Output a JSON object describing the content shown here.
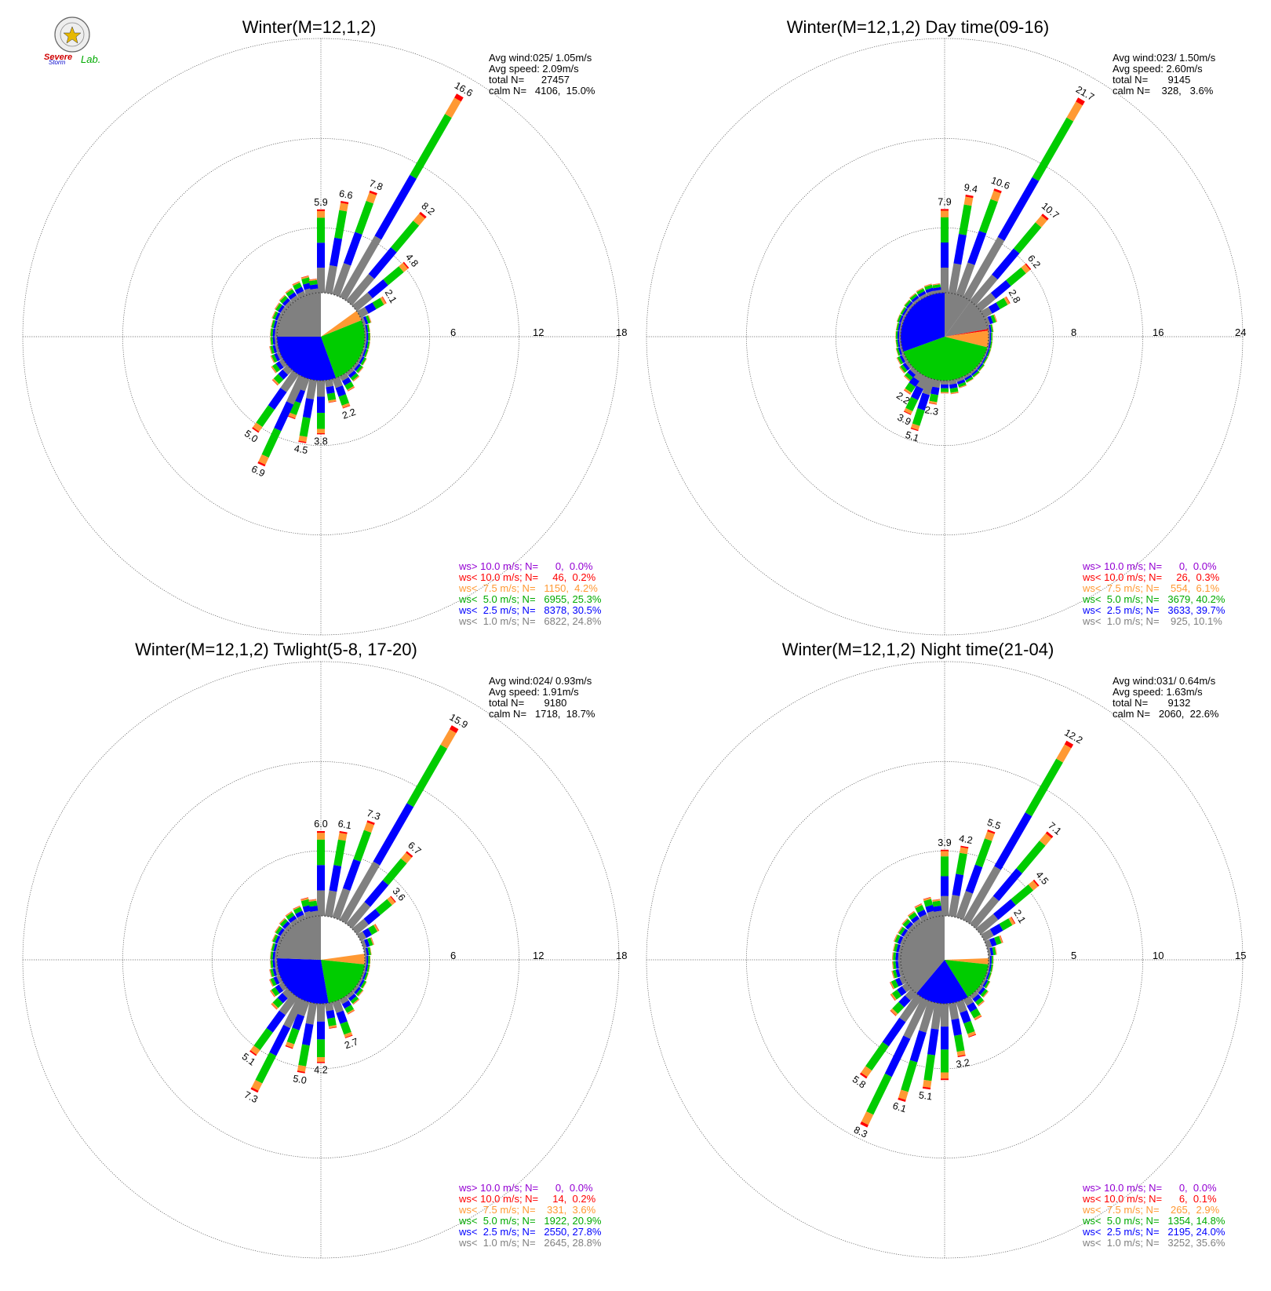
{
  "logo": {
    "text1": "Severe",
    "text2": "Storm",
    "text3": "Lab."
  },
  "colors": {
    "ws_gt_10": "#9400d3",
    "ws_lt_10": "#ff0000",
    "ws_lt_7_5": "#ff9933",
    "ws_lt_5": "#00cc00",
    "ws_lt_2_5": "#0000ff",
    "ws_lt_1": "#808080",
    "calm": "#ffffff"
  },
  "chart_data": [
    {
      "type": "polar-bar",
      "title": "Winter(M=12,1,2)",
      "rings": [
        "6",
        "12",
        "18"
      ],
      "rmax": 18,
      "stats": [
        "Avg wind:025/ 1.05m/s",
        "Avg speed: 2.09m/s",
        "total N=      27457",
        "calm N=   4106,  15.0%"
      ],
      "legend": [
        "ws> 10.0 m/s; N=      0,  0.0%",
        "ws< 10.0 m/s; N=     46,  0.2%",
        "ws<  7.5 m/s; N=   1150,  4.2%",
        "ws<  5.0 m/s; N=   6955, 25.3%",
        "ws<  2.5 m/s; N=   8378, 30.5%",
        "ws<  1.0 m/s; N=   6822, 24.8%"
      ],
      "bars": [
        {
          "dir": 0,
          "total": 5.9,
          "label": "5.9"
        },
        {
          "dir": 10,
          "total": 6.6,
          "label": "6.6"
        },
        {
          "dir": 20,
          "total": 7.8,
          "label": "7.8"
        },
        {
          "dir": 30,
          "total": 16.6,
          "label": "16.6"
        },
        {
          "dir": 40,
          "total": 8.2,
          "label": "8.2"
        },
        {
          "dir": 50,
          "total": 4.8,
          "label": "4.8"
        },
        {
          "dir": 60,
          "total": 2.1,
          "label": "2.1"
        },
        {
          "dir": 70,
          "total": 0.6,
          "label": ""
        },
        {
          "dir": 80,
          "total": 0.4,
          "label": ""
        },
        {
          "dir": 90,
          "total": 0.4,
          "label": ""
        },
        {
          "dir": 100,
          "total": 0.4,
          "label": ""
        },
        {
          "dir": 110,
          "total": 0.4,
          "label": ""
        },
        {
          "dir": 120,
          "total": 0.5,
          "label": ""
        },
        {
          "dir": 130,
          "total": 0.6,
          "label": ""
        },
        {
          "dir": 140,
          "total": 0.8,
          "label": ""
        },
        {
          "dir": 150,
          "total": 1.2,
          "label": ""
        },
        {
          "dir": 160,
          "total": 2.2,
          "label": "2.2"
        },
        {
          "dir": 170,
          "total": 1.6,
          "label": ""
        },
        {
          "dir": 180,
          "total": 3.8,
          "label": "3.8"
        },
        {
          "dir": 190,
          "total": 4.5,
          "label": "4.5"
        },
        {
          "dir": 200,
          "total": 3.0,
          "label": ""
        },
        {
          "dir": 205,
          "total": 6.9,
          "label": "6.9"
        },
        {
          "dir": 215,
          "total": 5.0,
          "label": "5.0"
        },
        {
          "dir": 225,
          "total": 1.5,
          "label": ""
        },
        {
          "dir": 235,
          "total": 1.0,
          "label": ""
        },
        {
          "dir": 245,
          "total": 0.7,
          "label": ""
        },
        {
          "dir": 255,
          "total": 0.6,
          "label": ""
        },
        {
          "dir": 265,
          "total": 0.5,
          "label": ""
        },
        {
          "dir": 275,
          "total": 0.5,
          "label": ""
        },
        {
          "dir": 285,
          "total": 0.5,
          "label": ""
        },
        {
          "dir": 295,
          "total": 0.6,
          "label": ""
        },
        {
          "dir": 305,
          "total": 0.7,
          "label": ""
        },
        {
          "dir": 315,
          "total": 0.8,
          "label": ""
        },
        {
          "dir": 325,
          "total": 0.9,
          "label": ""
        },
        {
          "dir": 335,
          "total": 1.1,
          "label": ""
        },
        {
          "dir": 345,
          "total": 1.3,
          "label": ""
        },
        {
          "dir": 352,
          "total": 1.0,
          "label": ""
        }
      ],
      "pie": [
        {
          "cls": "calm",
          "start": 0,
          "end": 54
        },
        {
          "cls": "ws_lt_7_5",
          "start": 54,
          "end": 68
        },
        {
          "cls": "ws_lt_5",
          "start": 68,
          "end": 160
        },
        {
          "cls": "ws_lt_2_5",
          "start": 160,
          "end": 270
        },
        {
          "cls": "ws_lt_1",
          "start": 270,
          "end": 360
        }
      ]
    },
    {
      "type": "polar-bar",
      "title": "Winter(M=12,1,2) Day time(09-16)",
      "rings": [
        "8",
        "16",
        "24"
      ],
      "rmax": 24,
      "stats": [
        "Avg wind:023/ 1.50m/s",
        "Avg speed: 2.60m/s",
        "total N=       9145",
        "calm N=    328,   3.6%"
      ],
      "legend": [
        "ws> 10.0 m/s; N=      0,  0.0%",
        "ws< 10.0 m/s; N=     26,  0.3%",
        "ws<  7.5 m/s; N=    554,  6.1%",
        "ws<  5.0 m/s; N=   3679, 40.2%",
        "ws<  2.5 m/s; N=   3633, 39.7%",
        "ws<  1.0 m/s; N=    925, 10.1%"
      ],
      "bars": [
        {
          "dir": 0,
          "total": 7.9,
          "label": "7.9"
        },
        {
          "dir": 10,
          "total": 9.4,
          "label": "9.4"
        },
        {
          "dir": 20,
          "total": 10.6,
          "label": "10.6"
        },
        {
          "dir": 30,
          "total": 21.7,
          "label": "21.7"
        },
        {
          "dir": 40,
          "total": 10.7,
          "label": "10.7"
        },
        {
          "dir": 50,
          "total": 6.2,
          "label": "6.2"
        },
        {
          "dir": 60,
          "total": 2.8,
          "label": "2.8"
        },
        {
          "dir": 70,
          "total": 1.0,
          "label": ""
        },
        {
          "dir": 80,
          "total": 0.5,
          "label": ""
        },
        {
          "dir": 90,
          "total": 0.4,
          "label": ""
        },
        {
          "dir": 100,
          "total": 0.4,
          "label": ""
        },
        {
          "dir": 110,
          "total": 0.4,
          "label": ""
        },
        {
          "dir": 120,
          "total": 0.4,
          "label": ""
        },
        {
          "dir": 130,
          "total": 0.5,
          "label": ""
        },
        {
          "dir": 140,
          "total": 0.6,
          "label": ""
        },
        {
          "dir": 150,
          "total": 0.7,
          "label": ""
        },
        {
          "dir": 160,
          "total": 0.9,
          "label": ""
        },
        {
          "dir": 170,
          "total": 1.3,
          "label": ""
        },
        {
          "dir": 180,
          "total": 1.2,
          "label": ""
        },
        {
          "dir": 190,
          "total": 2.3,
          "label": "2.3"
        },
        {
          "dir": 198,
          "total": 5.1,
          "label": "5.1"
        },
        {
          "dir": 206,
          "total": 3.9,
          "label": "3.9"
        },
        {
          "dir": 214,
          "total": 2.2,
          "label": "2.2"
        },
        {
          "dir": 222,
          "total": 1.2,
          "label": ""
        },
        {
          "dir": 232,
          "total": 1.0,
          "label": ""
        },
        {
          "dir": 242,
          "total": 0.8,
          "label": ""
        },
        {
          "dir": 252,
          "total": 0.6,
          "label": ""
        },
        {
          "dir": 262,
          "total": 0.5,
          "label": ""
        },
        {
          "dir": 272,
          "total": 0.5,
          "label": ""
        },
        {
          "dir": 282,
          "total": 0.5,
          "label": ""
        },
        {
          "dir": 292,
          "total": 0.6,
          "label": ""
        },
        {
          "dir": 302,
          "total": 0.6,
          "label": ""
        },
        {
          "dir": 312,
          "total": 0.7,
          "label": ""
        },
        {
          "dir": 322,
          "total": 0.8,
          "label": ""
        },
        {
          "dir": 332,
          "total": 0.9,
          "label": ""
        },
        {
          "dir": 342,
          "total": 1.0,
          "label": ""
        },
        {
          "dir": 351,
          "total": 0.9,
          "label": ""
        }
      ],
      "pie": [
        {
          "cls": "ws_lt_1",
          "start": 0,
          "end": 36
        },
        {
          "cls": "ws_lt_1",
          "start": 36,
          "end": 80
        },
        {
          "cls": "ws_lt_10",
          "start": 80,
          "end": 82
        },
        {
          "cls": "ws_lt_7_5",
          "start": 82,
          "end": 104
        },
        {
          "cls": "ws_lt_5",
          "start": 104,
          "end": 250
        },
        {
          "cls": "ws_lt_2_5",
          "start": 250,
          "end": 360
        }
      ]
    },
    {
      "type": "polar-bar",
      "title": "Winter(M=12,1,2) Twlight(5-8, 17-20)",
      "rings": [
        "6",
        "12",
        "18"
      ],
      "rmax": 18,
      "stats": [
        "Avg wind:024/ 0.93m/s",
        "Avg speed: 1.91m/s",
        "total N=       9180",
        "calm N=   1718,  18.7%"
      ],
      "legend": [
        "ws> 10.0 m/s; N=      0,  0.0%",
        "ws< 10.0 m/s; N=     14,  0.2%",
        "ws<  7.5 m/s; N=    331,  3.6%",
        "ws<  5.0 m/s; N=   1922, 20.9%",
        "ws<  2.5 m/s; N=   2550, 27.8%",
        "ws<  1.0 m/s; N=   2645, 28.8%"
      ],
      "bars": [
        {
          "dir": 0,
          "total": 6.0,
          "label": "6.0"
        },
        {
          "dir": 10,
          "total": 6.1,
          "label": "6.1"
        },
        {
          "dir": 20,
          "total": 7.3,
          "label": "7.3"
        },
        {
          "dir": 30,
          "total": 15.9,
          "label": "15.9"
        },
        {
          "dir": 40,
          "total": 6.7,
          "label": "6.7"
        },
        {
          "dir": 50,
          "total": 3.6,
          "label": "3.6"
        },
        {
          "dir": 60,
          "total": 1.5,
          "label": ""
        },
        {
          "dir": 70,
          "total": 0.8,
          "label": ""
        },
        {
          "dir": 80,
          "total": 0.5,
          "label": ""
        },
        {
          "dir": 90,
          "total": 0.4,
          "label": ""
        },
        {
          "dir": 100,
          "total": 0.4,
          "label": ""
        },
        {
          "dir": 110,
          "total": 0.4,
          "label": ""
        },
        {
          "dir": 120,
          "total": 0.5,
          "label": ""
        },
        {
          "dir": 130,
          "total": 0.6,
          "label": ""
        },
        {
          "dir": 140,
          "total": 0.8,
          "label": ""
        },
        {
          "dir": 150,
          "total": 1.2,
          "label": ""
        },
        {
          "dir": 160,
          "total": 2.7,
          "label": "2.7"
        },
        {
          "dir": 170,
          "total": 1.8,
          "label": ""
        },
        {
          "dir": 180,
          "total": 4.2,
          "label": "4.2"
        },
        {
          "dir": 190,
          "total": 5.0,
          "label": "5.0"
        },
        {
          "dir": 200,
          "total": 3.5,
          "label": ""
        },
        {
          "dir": 207,
          "total": 7.3,
          "label": "7.3"
        },
        {
          "dir": 216,
          "total": 5.1,
          "label": "5.1"
        },
        {
          "dir": 225,
          "total": 1.6,
          "label": ""
        },
        {
          "dir": 235,
          "total": 1.1,
          "label": ""
        },
        {
          "dir": 245,
          "total": 0.8,
          "label": ""
        },
        {
          "dir": 255,
          "total": 0.6,
          "label": ""
        },
        {
          "dir": 265,
          "total": 0.5,
          "label": ""
        },
        {
          "dir": 275,
          "total": 0.5,
          "label": ""
        },
        {
          "dir": 285,
          "total": 0.5,
          "label": ""
        },
        {
          "dir": 295,
          "total": 0.6,
          "label": ""
        },
        {
          "dir": 305,
          "total": 0.7,
          "label": ""
        },
        {
          "dir": 315,
          "total": 0.8,
          "label": ""
        },
        {
          "dir": 325,
          "total": 0.9,
          "label": ""
        },
        {
          "dir": 335,
          "total": 1.0,
          "label": ""
        },
        {
          "dir": 345,
          "total": 1.4,
          "label": ""
        },
        {
          "dir": 352,
          "total": 1.2,
          "label": ""
        }
      ],
      "pie": [
        {
          "cls": "calm",
          "start": 0,
          "end": 82
        },
        {
          "cls": "ws_lt_7_5",
          "start": 82,
          "end": 96
        },
        {
          "cls": "ws_lt_5",
          "start": 96,
          "end": 170
        },
        {
          "cls": "ws_lt_2_5",
          "start": 170,
          "end": 272
        },
        {
          "cls": "ws_lt_1",
          "start": 272,
          "end": 360
        }
      ]
    },
    {
      "type": "polar-bar",
      "title": "Winter(M=12,1,2) Night time(21-04)",
      "rings": [
        "5",
        "10",
        "15"
      ],
      "rmax": 15,
      "stats": [
        "Avg wind:031/ 0.64m/s",
        "Avg speed: 1.63m/s",
        "total N=       9132",
        "calm N=   2060,  22.6%"
      ],
      "legend": [
        "ws> 10.0 m/s; N=      0,  0.0%",
        "ws< 10.0 m/s; N=      6,  0.1%",
        "ws<  7.5 m/s; N=    265,  2.9%",
        "ws<  5.0 m/s; N=   1354, 14.8%",
        "ws<  2.5 m/s; N=   2195, 24.0%",
        "ws<  1.0 m/s; N=   3252, 35.6%"
      ],
      "bars": [
        {
          "dir": 0,
          "total": 3.9,
          "label": "3.9"
        },
        {
          "dir": 10,
          "total": 4.2,
          "label": "4.2"
        },
        {
          "dir": 20,
          "total": 5.5,
          "label": "5.5"
        },
        {
          "dir": 30,
          "total": 12.2,
          "label": "12.2"
        },
        {
          "dir": 40,
          "total": 7.1,
          "label": "7.1"
        },
        {
          "dir": 50,
          "total": 4.5,
          "label": "4.5"
        },
        {
          "dir": 60,
          "total": 2.1,
          "label": "2.1"
        },
        {
          "dir": 70,
          "total": 1.0,
          "label": ""
        },
        {
          "dir": 80,
          "total": 0.5,
          "label": ""
        },
        {
          "dir": 90,
          "total": 0.3,
          "label": ""
        },
        {
          "dir": 100,
          "total": 0.3,
          "label": ""
        },
        {
          "dir": 110,
          "total": 0.3,
          "label": ""
        },
        {
          "dir": 120,
          "total": 0.4,
          "label": ""
        },
        {
          "dir": 130,
          "total": 0.6,
          "label": ""
        },
        {
          "dir": 140,
          "total": 0.8,
          "label": ""
        },
        {
          "dir": 150,
          "total": 1.4,
          "label": ""
        },
        {
          "dir": 160,
          "total": 2.2,
          "label": ""
        },
        {
          "dir": 170,
          "total": 3.2,
          "label": "3.2"
        },
        {
          "dir": 180,
          "total": 4.5,
          "label": ""
        },
        {
          "dir": 188,
          "total": 5.1,
          "label": "5.1"
        },
        {
          "dir": 197,
          "total": 6.1,
          "label": "6.1"
        },
        {
          "dir": 206,
          "total": 8.3,
          "label": "8.3"
        },
        {
          "dir": 215,
          "total": 5.8,
          "label": "5.8"
        },
        {
          "dir": 224,
          "total": 1.8,
          "label": ""
        },
        {
          "dir": 234,
          "total": 1.2,
          "label": ""
        },
        {
          "dir": 244,
          "total": 0.9,
          "label": ""
        },
        {
          "dir": 254,
          "total": 0.6,
          "label": ""
        },
        {
          "dir": 264,
          "total": 0.5,
          "label": ""
        },
        {
          "dir": 274,
          "total": 0.5,
          "label": ""
        },
        {
          "dir": 284,
          "total": 0.5,
          "label": ""
        },
        {
          "dir": 294,
          "total": 0.6,
          "label": ""
        },
        {
          "dir": 304,
          "total": 0.6,
          "label": ""
        },
        {
          "dir": 314,
          "total": 0.7,
          "label": ""
        },
        {
          "dir": 324,
          "total": 0.8,
          "label": ""
        },
        {
          "dir": 334,
          "total": 1.0,
          "label": ""
        },
        {
          "dir": 344,
          "total": 1.2,
          "label": ""
        },
        {
          "dir": 352,
          "total": 1.0,
          "label": ""
        }
      ],
      "pie": [
        {
          "cls": "calm",
          "start": 0,
          "end": 88
        },
        {
          "cls": "ws_lt_7_5",
          "start": 88,
          "end": 96
        },
        {
          "cls": "ws_lt_5",
          "start": 96,
          "end": 148
        },
        {
          "cls": "ws_lt_2_5",
          "start": 148,
          "end": 220
        },
        {
          "cls": "ws_lt_1",
          "start": 220,
          "end": 360
        }
      ]
    }
  ]
}
